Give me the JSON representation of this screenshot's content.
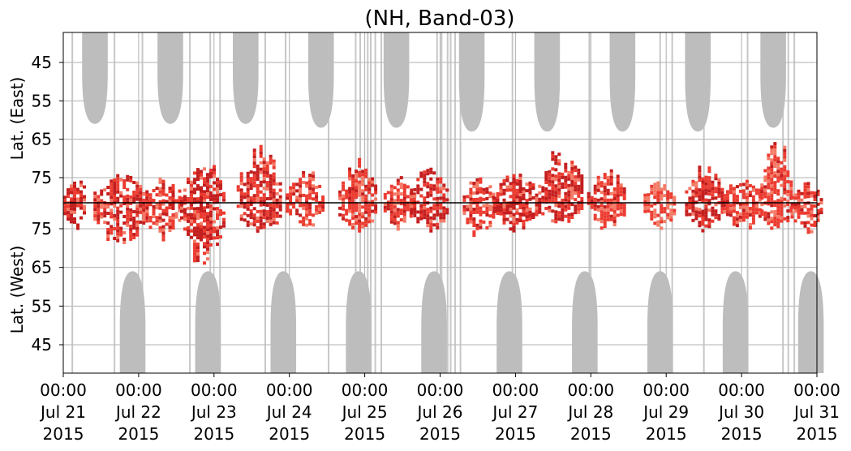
{
  "chart_data": {
    "type": "heatmap",
    "title": "(NH, Band-03)",
    "ylabel_top": "Lat. (East)",
    "ylabel_bottom": "Lat. (West)",
    "y_ticks_top": [
      "45",
      "55",
      "65",
      "75"
    ],
    "y_ticks_bottom": [
      "75",
      "65",
      "55",
      "45"
    ],
    "y_tick_values": [
      45,
      55,
      65,
      75
    ],
    "x_ticks": [
      {
        "time": "00:00",
        "date": "Jul 21",
        "year": "2015"
      },
      {
        "time": "00:00",
        "date": "Jul 22",
        "year": "2015"
      },
      {
        "time": "00:00",
        "date": "Jul 23",
        "year": "2015"
      },
      {
        "time": "00:00",
        "date": "Jul 24",
        "year": "2015"
      },
      {
        "time": "00:00",
        "date": "Jul 25",
        "year": "2015"
      },
      {
        "time": "00:00",
        "date": "Jul 26",
        "year": "2015"
      },
      {
        "time": "00:00",
        "date": "Jul 27",
        "year": "2015"
      },
      {
        "time": "00:00",
        "date": "Jul 28",
        "year": "2015"
      },
      {
        "time": "00:00",
        "date": "Jul 29",
        "year": "2015"
      },
      {
        "time": "00:00",
        "date": "Jul 30",
        "year": "2015"
      },
      {
        "time": "00:00",
        "date": "Jul 31",
        "year": "2015"
      }
    ],
    "grid": true,
    "colors": {
      "no_data": "#bdbdbd",
      "dark": "#c41e1e",
      "medium": "#ec3b30",
      "light": "#f47a66",
      "grid": "#b0b0b0",
      "center_line": "#000000"
    },
    "no_data_lobes_east": [
      {
        "center_day": 0.42,
        "half_width_days": 0.17,
        "reach_lat": 61
      },
      {
        "center_day": 1.42,
        "half_width_days": 0.17,
        "reach_lat": 61
      },
      {
        "center_day": 2.42,
        "half_width_days": 0.17,
        "reach_lat": 61
      },
      {
        "center_day": 3.42,
        "half_width_days": 0.17,
        "reach_lat": 62
      },
      {
        "center_day": 4.42,
        "half_width_days": 0.17,
        "reach_lat": 62
      },
      {
        "center_day": 5.42,
        "half_width_days": 0.17,
        "reach_lat": 63
      },
      {
        "center_day": 6.42,
        "half_width_days": 0.17,
        "reach_lat": 63
      },
      {
        "center_day": 7.42,
        "half_width_days": 0.17,
        "reach_lat": 63
      },
      {
        "center_day": 8.42,
        "half_width_days": 0.17,
        "reach_lat": 63
      },
      {
        "center_day": 9.42,
        "half_width_days": 0.17,
        "reach_lat": 62
      }
    ],
    "no_data_lobes_west": [
      {
        "center_day": 0.92,
        "half_width_days": 0.17,
        "reach_lat": 64
      },
      {
        "center_day": 1.92,
        "half_width_days": 0.17,
        "reach_lat": 64
      },
      {
        "center_day": 2.92,
        "half_width_days": 0.17,
        "reach_lat": 64
      },
      {
        "center_day": 3.92,
        "half_width_days": 0.17,
        "reach_lat": 64
      },
      {
        "center_day": 4.92,
        "half_width_days": 0.17,
        "reach_lat": 64
      },
      {
        "center_day": 5.92,
        "half_width_days": 0.17,
        "reach_lat": 64
      },
      {
        "center_day": 6.92,
        "half_width_days": 0.17,
        "reach_lat": 64
      },
      {
        "center_day": 7.92,
        "half_width_days": 0.17,
        "reach_lat": 64
      },
      {
        "center_day": 8.92,
        "half_width_days": 0.17,
        "reach_lat": 64
      },
      {
        "center_day": 9.92,
        "half_width_days": 0.17,
        "reach_lat": 64
      }
    ],
    "no_data_stripes_days": [
      0.12,
      0.68,
      1.05,
      1.68,
      1.95,
      2.08,
      2.68,
      2.95,
      3.52,
      3.88,
      3.94,
      4.04,
      4.08,
      4.14,
      4.22,
      4.96,
      5.02,
      5.1,
      5.14,
      5.2,
      5.27,
      5.96,
      6.98,
      7.92,
      8.08,
      8.5,
      9.08,
      9.55,
      9.62,
      9.7
    ],
    "activity_blobs": [
      {
        "day": 0.15,
        "lat_east": 76,
        "lat_west": 78,
        "half_width_days": 0.15,
        "intensity": "dark"
      },
      {
        "day": 0.75,
        "lat_east": 75,
        "lat_west": 72,
        "half_width_days": 0.35,
        "intensity": "dark"
      },
      {
        "day": 1.3,
        "lat_east": 77,
        "lat_west": 74,
        "half_width_days": 0.25,
        "intensity": "medium"
      },
      {
        "day": 1.85,
        "lat_east": 72,
        "lat_west": 68,
        "half_width_days": 0.3,
        "intensity": "dark"
      },
      {
        "day": 2.6,
        "lat_east": 69,
        "lat_west": 76,
        "half_width_days": 0.3,
        "intensity": "dark"
      },
      {
        "day": 3.2,
        "lat_east": 74,
        "lat_west": 79,
        "half_width_days": 0.25,
        "intensity": "medium"
      },
      {
        "day": 3.9,
        "lat_east": 72,
        "lat_west": 75,
        "half_width_days": 0.25,
        "intensity": "medium"
      },
      {
        "day": 4.45,
        "lat_east": 77,
        "lat_west": 77,
        "half_width_days": 0.2,
        "intensity": "medium"
      },
      {
        "day": 4.85,
        "lat_east": 73,
        "lat_west": 77,
        "half_width_days": 0.25,
        "intensity": "dark"
      },
      {
        "day": 5.5,
        "lat_east": 76,
        "lat_west": 74,
        "half_width_days": 0.2,
        "intensity": "medium"
      },
      {
        "day": 6.0,
        "lat_east": 75,
        "lat_west": 76,
        "half_width_days": 0.3,
        "intensity": "dark"
      },
      {
        "day": 6.6,
        "lat_east": 69,
        "lat_west": 79,
        "half_width_days": 0.3,
        "intensity": "dark"
      },
      {
        "day": 7.2,
        "lat_east": 74,
        "lat_west": 78,
        "half_width_days": 0.25,
        "intensity": "medium"
      },
      {
        "day": 7.9,
        "lat_east": 78,
        "lat_west": 77,
        "half_width_days": 0.2,
        "intensity": "light"
      },
      {
        "day": 8.5,
        "lat_east": 73,
        "lat_west": 76,
        "half_width_days": 0.25,
        "intensity": "dark"
      },
      {
        "day": 9.0,
        "lat_east": 76,
        "lat_west": 76,
        "half_width_days": 0.25,
        "intensity": "medium"
      },
      {
        "day": 9.45,
        "lat_east": 67,
        "lat_west": 76,
        "half_width_days": 0.2,
        "intensity": "medium"
      },
      {
        "day": 9.85,
        "lat_east": 78,
        "lat_west": 75,
        "half_width_days": 0.2,
        "intensity": "medium"
      }
    ]
  }
}
